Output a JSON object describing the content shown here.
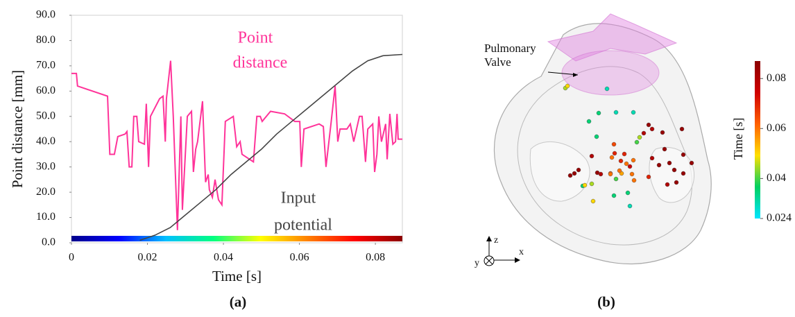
{
  "chart_data": [
    {
      "type": "line",
      "panel_label": "(a)",
      "x_label": "Time [s]",
      "y_label": "Point distance [mm]",
      "xlim": [
        0,
        0.0871
      ],
      "ylim": [
        0,
        90
      ],
      "xticks": [
        0,
        0.02,
        0.04,
        0.06,
        0.08
      ],
      "yticks": [
        {
          "value": 0,
          "label": "0.0"
        },
        {
          "value": 10,
          "label": "10.0"
        },
        {
          "value": 20,
          "label": "20.0"
        },
        {
          "value": 30,
          "label": "30.0"
        },
        {
          "value": 40,
          "label": "40.0"
        },
        {
          "value": 50,
          "label": "50.0"
        },
        {
          "value": 60,
          "label": "60.0"
        },
        {
          "value": 70,
          "label": "70.0"
        },
        {
          "value": 80,
          "label": "80.0"
        },
        {
          "value": 90,
          "label": "90.0"
        }
      ],
      "time_colormap": [
        "#00008b",
        "#0000ff",
        "#00c0ff",
        "#00ff80",
        "#ffff00",
        "#ff8000",
        "#ff0000",
        "#8b0000"
      ],
      "series": [
        {
          "label_lines": [
            "Point",
            "distance"
          ],
          "color": "#ff3399",
          "x": [
            0,
            0.0013,
            0.0016,
            0.0095,
            0.0101,
            0.0113,
            0.0122,
            0.0141,
            0.0146,
            0.0152,
            0.0159,
            0.0164,
            0.0172,
            0.0177,
            0.0192,
            0.0197,
            0.0203,
            0.0208,
            0.0232,
            0.0241,
            0.0247,
            0.025,
            0.0261,
            0.0268,
            0.0279,
            0.0288,
            0.0292,
            0.0305,
            0.0316,
            0.0321,
            0.0327,
            0.0332,
            0.0345,
            0.0353,
            0.036,
            0.0363,
            0.0371,
            0.0378,
            0.0387,
            0.0396,
            0.0405,
            0.0426,
            0.0435,
            0.0444,
            0.0449,
            0.0479,
            0.0488,
            0.0497,
            0.0502,
            0.0524,
            0.0561,
            0.0588,
            0.0601,
            0.0605,
            0.0612,
            0.0652,
            0.0663,
            0.067,
            0.0683,
            0.0694,
            0.0701,
            0.0707,
            0.0725,
            0.0734,
            0.0743,
            0.0758,
            0.0765,
            0.0774,
            0.078,
            0.0793,
            0.0798,
            0.0804,
            0.0809,
            0.0816,
            0.0827,
            0.0831,
            0.0838,
            0.0846,
            0.0853,
            0.0857,
            0.086,
            0.0871
          ],
          "values": [
            67,
            67,
            62,
            58,
            35,
            35,
            42,
            43,
            44,
            30,
            30,
            50,
            50,
            40,
            39,
            55,
            30,
            50,
            57,
            58,
            40,
            57,
            72,
            50,
            5,
            50,
            13,
            50,
            52,
            28,
            37,
            40,
            56,
            24,
            27,
            21,
            18,
            25,
            17,
            15,
            48,
            50,
            38,
            40,
            35,
            32,
            50,
            50,
            48,
            52,
            51,
            48,
            48,
            30,
            45,
            47,
            46,
            30,
            47,
            62,
            40,
            45,
            45,
            47,
            40,
            50,
            50,
            32,
            45,
            47,
            28,
            35,
            50,
            40,
            47,
            33,
            51,
            39,
            40,
            51,
            41,
            41
          ]
        },
        {
          "label_lines": [
            "Input",
            "potential"
          ],
          "color": "#444444",
          "x": [
            0.018,
            0.022,
            0.026,
            0.03,
            0.034,
            0.038,
            0.042,
            0.046,
            0.05,
            0.054,
            0.058,
            0.062,
            0.066,
            0.07,
            0.074,
            0.078,
            0.082,
            0.0871
          ],
          "values": [
            1,
            3,
            6,
            11,
            16,
            21,
            27,
            32,
            37,
            43,
            48,
            53,
            58,
            63,
            68,
            72,
            74,
            74.5
          ]
        }
      ]
    },
    {
      "type": "scatter3d",
      "panel_label": "(b)",
      "annotation": [
        "Pulmonary",
        "Valve"
      ],
      "axis_labels": {
        "x": "x",
        "y": "y",
        "z": "z"
      },
      "colorbar_label": "Time [s]",
      "clim": [
        0.024,
        0.087
      ],
      "cticks": [
        0.08,
        0.06,
        0.04,
        0.024
      ],
      "time_colormap": [
        "#00e5ff",
        "#00d060",
        "#ffe000",
        "#ff6000",
        "#d00000",
        "#8b0000"
      ],
      "times": [
        0.045,
        0.05,
        0.03,
        0.035,
        0.03,
        0.03,
        0.035,
        0.085,
        0.08,
        0.08,
        0.085,
        0.085,
        0.045,
        0.04,
        0.065,
        0.035,
        0.07,
        0.06,
        0.08,
        0.065,
        0.07,
        0.06,
        0.075,
        0.06,
        0.07,
        0.055,
        0.06,
        0.06,
        0.04,
        0.085,
        0.085,
        0.085,
        0.085,
        0.08,
        0.035,
        0.05,
        0.045,
        0.085,
        0.08,
        0.085,
        0.085,
        0.085,
        0.085,
        0.085,
        0.08,
        0.07,
        0.06,
        0.035,
        0.035,
        0.03,
        0.05,
        0.085,
        0.085,
        0.06
      ]
    }
  ]
}
